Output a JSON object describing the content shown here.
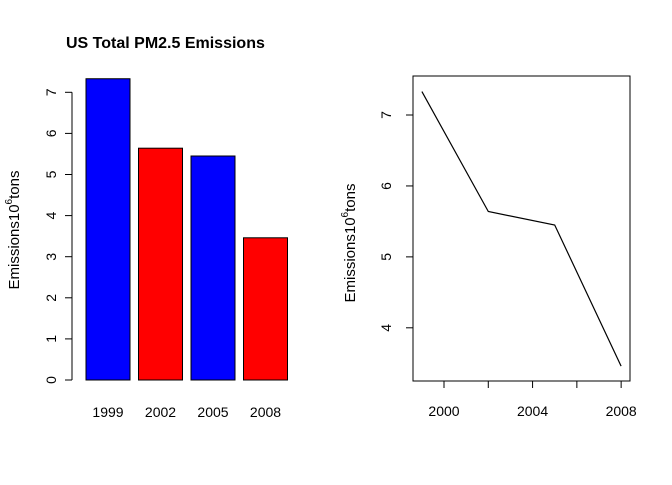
{
  "figure": {
    "title": "US Total PM2.5 Emissions"
  },
  "chart_data": [
    {
      "type": "bar",
      "title": "US Total PM2.5 Emissions",
      "categories": [
        "1999",
        "2002",
        "2005",
        "2008"
      ],
      "values": [
        7.33,
        5.64,
        5.45,
        3.46
      ],
      "colors": [
        "#0000FF",
        "#FF0000",
        "#0000FF",
        "#FF0000"
      ],
      "ylabel": {
        "prefix": "Emissions10",
        "sup": "6",
        "suffix": "tons"
      },
      "yticks": [
        0,
        1,
        2,
        3,
        4,
        5,
        6,
        7
      ],
      "ylim": [
        0,
        7.6
      ],
      "grid": false
    },
    {
      "type": "line",
      "x": [
        1999,
        2002,
        2005,
        2008
      ],
      "y": [
        7.33,
        5.64,
        5.45,
        3.46
      ],
      "line_color": "#000000",
      "ylabel": {
        "prefix": "Emissions10",
        "sup": "6",
        "suffix": "tons"
      },
      "xticks": [
        2000,
        2002,
        2004,
        2006,
        2008
      ],
      "xticklabels": [
        "2000",
        "",
        "2004",
        "",
        "2008"
      ],
      "yticks": [
        4,
        5,
        6,
        7
      ],
      "xlim": [
        1998.6,
        2008.4
      ],
      "ylim": [
        3.25,
        7.55
      ],
      "grid": false
    }
  ]
}
